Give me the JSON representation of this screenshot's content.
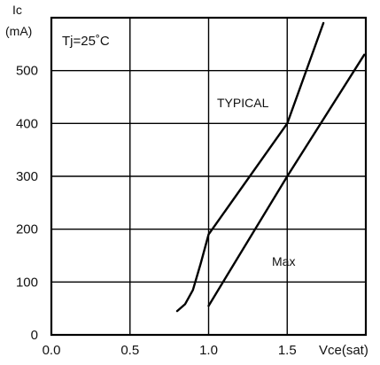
{
  "chart_data": {
    "type": "line",
    "title": "",
    "condition": "Tj=25˚C",
    "ylabel_line1": "Ic",
    "ylabel_line2": "(mA)",
    "xlabel": "Vce(sat)",
    "xlim": [
      0.0,
      2.0
    ],
    "ylim": [
      0,
      600
    ],
    "x_ticks": [
      "0.0",
      "0.5",
      "1.0",
      "1.5"
    ],
    "y_ticks": [
      "0",
      "100",
      "200",
      "300",
      "400",
      "500"
    ],
    "grid": true,
    "series": [
      {
        "name": "TYPICAL",
        "points": [
          [
            0.8,
            45
          ],
          [
            0.85,
            58
          ],
          [
            0.9,
            85
          ],
          [
            0.95,
            135
          ],
          [
            1.0,
            190
          ],
          [
            1.5,
            400
          ],
          [
            1.73,
            590
          ]
        ]
      },
      {
        "name": "Max",
        "points": [
          [
            1.0,
            55
          ],
          [
            1.5,
            300
          ],
          [
            1.99,
            530
          ]
        ]
      }
    ],
    "annotations": [
      "TYPICAL",
      "Max"
    ]
  }
}
